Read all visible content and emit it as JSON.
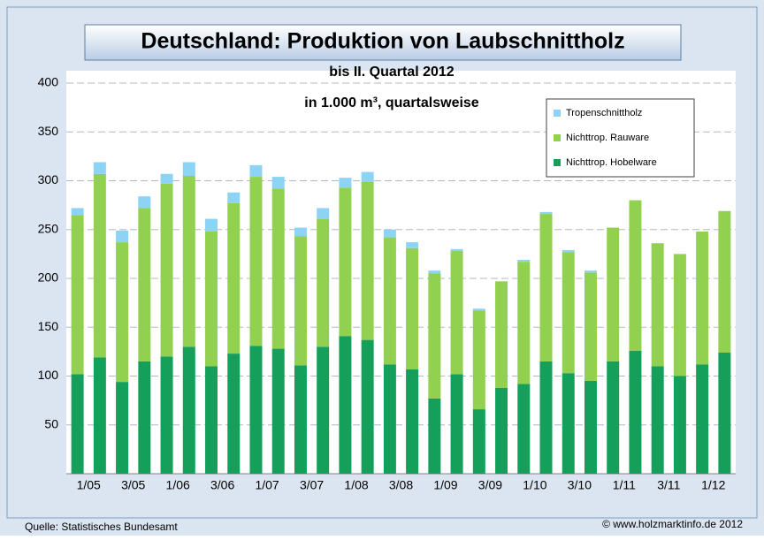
{
  "chart_data": {
    "type": "stacked_bar",
    "title": "Deutschland: Produktion von Laubschnittholz",
    "subtitle": [
      "bis II. Quartal 2012",
      "in 1.000 m³, quartalsweise"
    ],
    "source": "Quelle: Statistisches Bundesamt",
    "credit": "© www.holzmarktinfo.de 2012",
    "categories": [
      "1/05",
      null,
      "3/05",
      null,
      "1/06",
      null,
      "3/06",
      null,
      "1/07",
      null,
      "3/07",
      null,
      "1/08",
      null,
      "3/08",
      null,
      "1/09",
      null,
      "3/09",
      null,
      "1/10",
      null,
      "3/10",
      null,
      "1/11",
      null,
      "3/11",
      null,
      "1/12",
      null
    ],
    "series": [
      {
        "name": "Nichttrop. Hobelware",
        "color": "#149f5b",
        "values": [
          102,
          119,
          94,
          115,
          120,
          130,
          110,
          123,
          131,
          128,
          111,
          130,
          141,
          137,
          112,
          107,
          77,
          102,
          66,
          88,
          92,
          115,
          103,
          95,
          115,
          126,
          110,
          100,
          112,
          124
        ]
      },
      {
        "name": "Nichttrop. Rauware",
        "color": "#92d050",
        "values": [
          163,
          188,
          143,
          157,
          177,
          175,
          138,
          154,
          173,
          164,
          132,
          131,
          152,
          162,
          130,
          124,
          128,
          126,
          101,
          109,
          125,
          151,
          124,
          111,
          137,
          154,
          126,
          125,
          136,
          145
        ]
      },
      {
        "name": "Tropenschnittholz",
        "color": "#8dd3f5",
        "values": [
          7,
          12,
          12,
          12,
          10,
          14,
          13,
          11,
          12,
          12,
          9,
          11,
          10,
          10,
          8,
          6,
          3,
          2,
          2,
          0,
          2,
          2,
          2,
          2,
          0,
          0,
          0,
          0,
          0,
          0
        ]
      }
    ],
    "ylim": [
      0,
      400
    ],
    "yticks": [
      50,
      100,
      150,
      200,
      250,
      300,
      350,
      400
    ],
    "grid": true
  }
}
